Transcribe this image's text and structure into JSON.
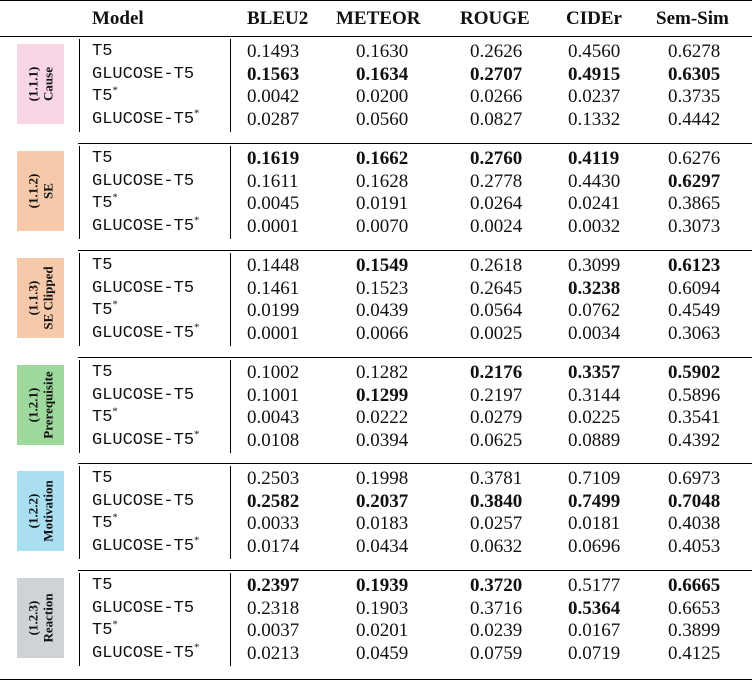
{
  "columns": [
    "Model",
    "BLEU2",
    "METEOR",
    "ROUGE",
    "CIDEr",
    "Sem-Sim"
  ],
  "groups": [
    {
      "id": "(1.1.1)",
      "name": "Cause",
      "color": "#f9d6e5",
      "rows": [
        {
          "model": "T5",
          "star": false,
          "vals": [
            "0.1493",
            "0.1630",
            "0.2626",
            "0.4560",
            "0.6278"
          ],
          "bold": [
            false,
            false,
            false,
            false,
            false
          ]
        },
        {
          "model": "GLUCOSE-T5",
          "star": false,
          "vals": [
            "0.1563",
            "0.1634",
            "0.2707",
            "0.4915",
            "0.6305"
          ],
          "bold": [
            true,
            true,
            true,
            true,
            true
          ]
        },
        {
          "model": "T5",
          "star": true,
          "vals": [
            "0.0042",
            "0.0200",
            "0.0266",
            "0.0237",
            "0.3735"
          ],
          "bold": [
            false,
            false,
            false,
            false,
            false
          ]
        },
        {
          "model": "GLUCOSE-T5",
          "star": true,
          "vals": [
            "0.0287",
            "0.0560",
            "0.0827",
            "0.1332",
            "0.4442"
          ],
          "bold": [
            false,
            false,
            false,
            false,
            false
          ]
        }
      ]
    },
    {
      "id": "(1.1.2)",
      "name": "SE",
      "color": "#f6c9ab",
      "rows": [
        {
          "model": "T5",
          "star": false,
          "vals": [
            "0.1619",
            "0.1662",
            "0.2760",
            "0.4119",
            "0.6276"
          ],
          "bold": [
            true,
            true,
            true,
            true,
            false
          ]
        },
        {
          "model": "GLUCOSE-T5",
          "star": false,
          "vals": [
            "0.1611",
            "0.1628",
            "0.2778",
            "0.4430",
            "0.6297"
          ],
          "bold": [
            false,
            false,
            false,
            false,
            true
          ]
        },
        {
          "model": "T5",
          "star": true,
          "vals": [
            "0.0045",
            "0.0191",
            "0.0264",
            "0.0241",
            "0.3865"
          ],
          "bold": [
            false,
            false,
            false,
            false,
            false
          ]
        },
        {
          "model": "GLUCOSE-T5",
          "star": true,
          "vals": [
            "0.0001",
            "0.0070",
            "0.0024",
            "0.0032",
            "0.3073"
          ],
          "bold": [
            false,
            false,
            false,
            false,
            false
          ]
        }
      ]
    },
    {
      "id": "(1.1.3)",
      "name": "SE Clipped",
      "color": "#f6c9ab",
      "rows": [
        {
          "model": "T5",
          "star": false,
          "vals": [
            "0.1448",
            "0.1549",
            "0.2618",
            "0.3099",
            "0.6123"
          ],
          "bold": [
            false,
            true,
            false,
            false,
            true
          ]
        },
        {
          "model": "GLUCOSE-T5",
          "star": false,
          "vals": [
            "0.1461",
            "0.1523",
            "0.2645",
            "0.3238",
            "0.6094"
          ],
          "bold": [
            false,
            false,
            false,
            true,
            false
          ]
        },
        {
          "model": "T5",
          "star": true,
          "vals": [
            "0.0199",
            "0.0439",
            "0.0564",
            "0.0762",
            "0.4549"
          ],
          "bold": [
            false,
            false,
            false,
            false,
            false
          ]
        },
        {
          "model": "GLUCOSE-T5",
          "star": true,
          "vals": [
            "0.0001",
            "0.0066",
            "0.0025",
            "0.0034",
            "0.3063"
          ],
          "bold": [
            false,
            false,
            false,
            false,
            false
          ]
        }
      ]
    },
    {
      "id": "(1.2.1)",
      "name": "Prerequisite",
      "color": "#9ed89d",
      "rows": [
        {
          "model": "T5",
          "star": false,
          "vals": [
            "0.1002",
            "0.1282",
            "0.2176",
            "0.3357",
            "0.5902"
          ],
          "bold": [
            false,
            false,
            true,
            true,
            true
          ]
        },
        {
          "model": "GLUCOSE-T5",
          "star": false,
          "vals": [
            "0.1001",
            "0.1299",
            "0.2197",
            "0.3144",
            "0.5896"
          ],
          "bold": [
            false,
            true,
            false,
            false,
            false
          ]
        },
        {
          "model": "T5",
          "star": true,
          "vals": [
            "0.0043",
            "0.0222",
            "0.0279",
            "0.0225",
            "0.3541"
          ],
          "bold": [
            false,
            false,
            false,
            false,
            false
          ]
        },
        {
          "model": "GLUCOSE-T5",
          "star": true,
          "vals": [
            "0.0108",
            "0.0394",
            "0.0625",
            "0.0889",
            "0.4392"
          ],
          "bold": [
            false,
            false,
            false,
            false,
            false
          ]
        }
      ]
    },
    {
      "id": "(1.2.2)",
      "name": "Motivation",
      "color": "#a9dff0",
      "rows": [
        {
          "model": "T5",
          "star": false,
          "vals": [
            "0.2503",
            "0.1998",
            "0.3781",
            "0.7109",
            "0.6973"
          ],
          "bold": [
            false,
            false,
            false,
            false,
            false
          ]
        },
        {
          "model": "GLUCOSE-T5",
          "star": false,
          "vals": [
            "0.2582",
            "0.2037",
            "0.3840",
            "0.7499",
            "0.7048"
          ],
          "bold": [
            true,
            true,
            true,
            true,
            true
          ]
        },
        {
          "model": "T5",
          "star": true,
          "vals": [
            "0.0033",
            "0.0183",
            "0.0257",
            "0.0181",
            "0.4038"
          ],
          "bold": [
            false,
            false,
            false,
            false,
            false
          ]
        },
        {
          "model": "GLUCOSE-T5",
          "star": true,
          "vals": [
            "0.0174",
            "0.0434",
            "0.0632",
            "0.0696",
            "0.4053"
          ],
          "bold": [
            false,
            false,
            false,
            false,
            false
          ]
        }
      ]
    },
    {
      "id": "(1.2.3)",
      "name": "Reaction",
      "color": "#cfd2d6",
      "rows": [
        {
          "model": "T5",
          "star": false,
          "vals": [
            "0.2397",
            "0.1939",
            "0.3720",
            "0.5177",
            "0.6665"
          ],
          "bold": [
            true,
            true,
            true,
            false,
            true
          ]
        },
        {
          "model": "GLUCOSE-T5",
          "star": false,
          "vals": [
            "0.2318",
            "0.1903",
            "0.3716",
            "0.5364",
            "0.6653"
          ],
          "bold": [
            false,
            false,
            false,
            true,
            false
          ]
        },
        {
          "model": "T5",
          "star": true,
          "vals": [
            "0.0037",
            "0.0201",
            "0.0239",
            "0.0167",
            "0.3899"
          ],
          "bold": [
            false,
            false,
            false,
            false,
            false
          ]
        },
        {
          "model": "GLUCOSE-T5",
          "star": true,
          "vals": [
            "0.0213",
            "0.0459",
            "0.0759",
            "0.0719",
            "0.4125"
          ],
          "bold": [
            false,
            false,
            false,
            false,
            false
          ]
        }
      ]
    }
  ]
}
